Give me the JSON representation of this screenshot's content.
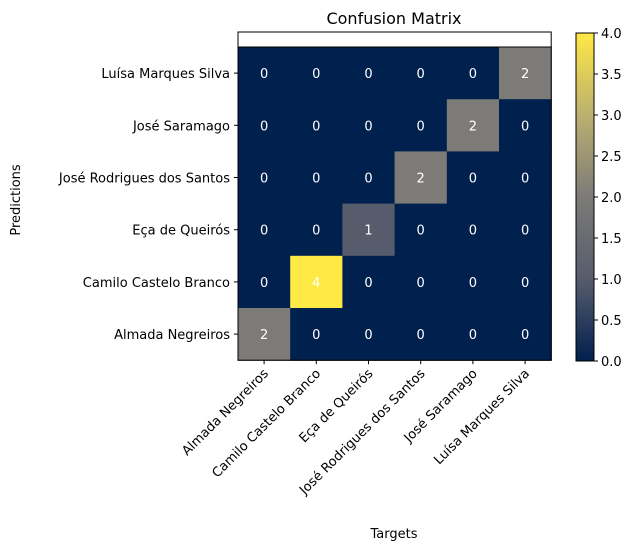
{
  "chart_data": {
    "type": "heatmap",
    "title": "Confusion Matrix",
    "xlabel": "Targets",
    "ylabel": "Predictions",
    "x_categories": [
      "Almada Negreiros",
      "Camilo Castelo Branco",
      "Eça de Queirós",
      "José Rodrigues dos Santos",
      "José Saramago",
      "Luísa Marques Silva"
    ],
    "y_categories_top_to_bottom": [
      "Luísa Marques Silva",
      "José Saramago",
      "José Rodrigues dos Santos",
      "Eça de Queirós",
      "Camilo Castelo Branco",
      "Almada Negreiros"
    ],
    "values_top_to_bottom": [
      [
        0,
        0,
        0,
        0,
        0,
        2
      ],
      [
        0,
        0,
        0,
        0,
        2,
        0
      ],
      [
        0,
        0,
        0,
        2,
        0,
        0
      ],
      [
        0,
        0,
        1,
        0,
        0,
        0
      ],
      [
        0,
        4,
        0,
        0,
        0,
        0
      ],
      [
        2,
        0,
        0,
        0,
        0,
        0
      ]
    ],
    "colorbar": {
      "colormap": "cividis",
      "min": 0.0,
      "max": 4.0,
      "ticks": [
        "0.0",
        "0.5",
        "1.0",
        "1.5",
        "2.0",
        "2.5",
        "3.0",
        "3.5",
        "4.0"
      ]
    },
    "colors": {
      "zero": "#00204d",
      "one": "#575c6d",
      "two": "#7c7b78",
      "four": "#ffe945"
    }
  }
}
